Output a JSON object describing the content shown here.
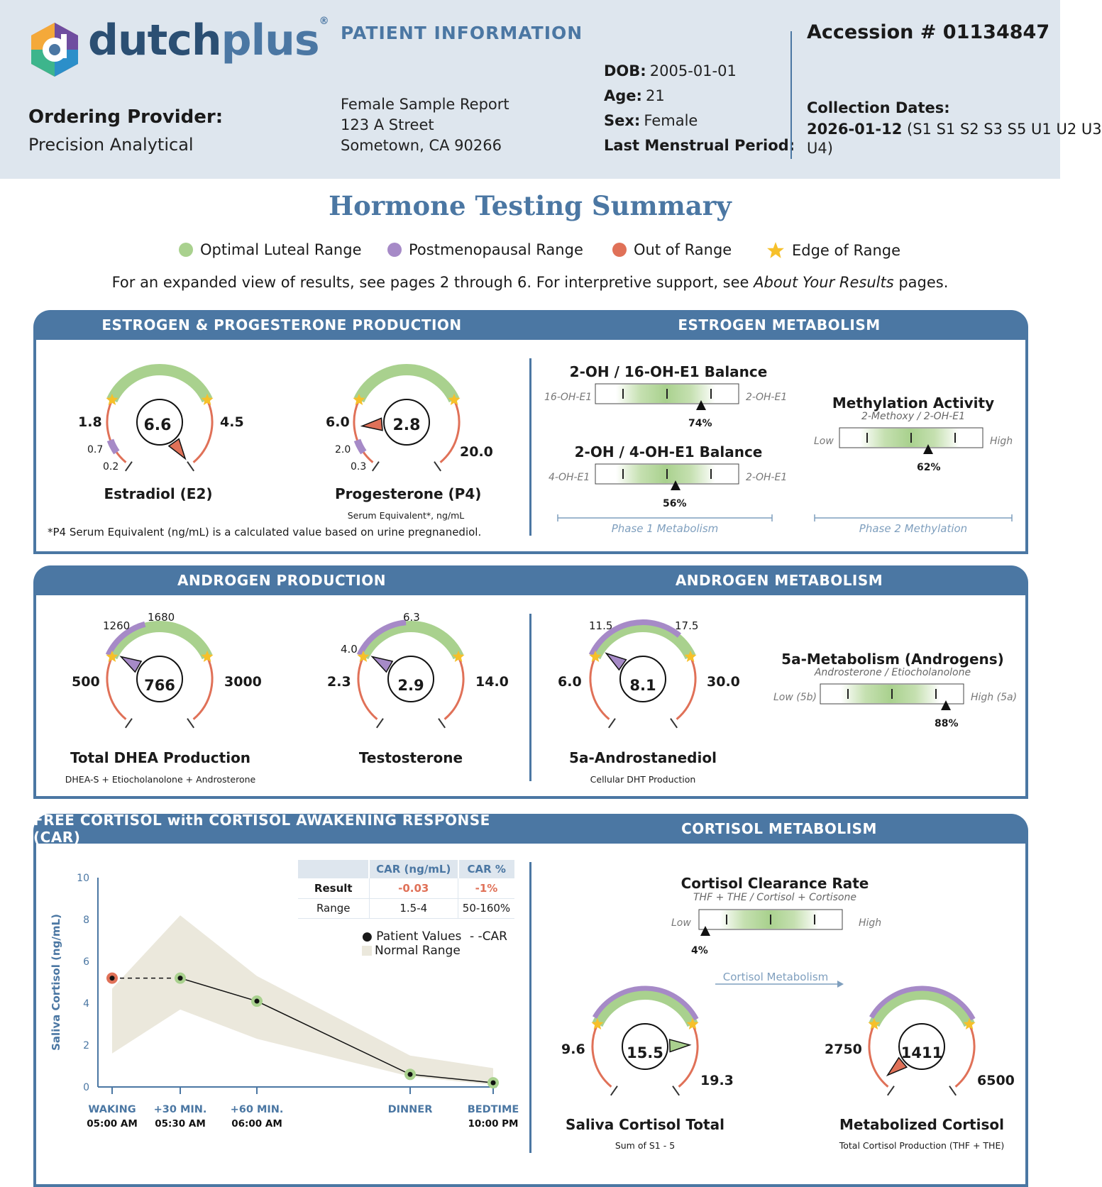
{
  "header": {
    "logo_text_dark": "dutch",
    "logo_text_light": "plus",
    "logo_reg": "®",
    "patient_info_title": "PATIENT INFORMATION",
    "ordering_provider_label": "Ordering Provider:",
    "ordering_provider_value": "Precision Analytical",
    "patient_name": "Female Sample Report",
    "address_line1": "123 A Street",
    "address_line2": "Sometown, CA 90266",
    "dob_label": "DOB:",
    "dob_value": "2005-01-01",
    "age_label": "Age:",
    "age_value": "21",
    "sex_label": "Sex:",
    "sex_value": "Female",
    "lmp_label": "Last Menstrual Period:",
    "accession": "Accession # 01134847",
    "collection_label": "Collection Dates:",
    "collection_date": "2026-01-12",
    "collection_samples_1": "(S1 S1 S2 S3 S5 U1 U2 U3",
    "collection_samples_2": "U4)"
  },
  "title": "Hormone Testing Summary",
  "legend": {
    "optimal": "Optimal Luteal Range",
    "postmeno": "Postmenopausal Range",
    "out": "Out of Range",
    "edge": "Edge of Range"
  },
  "intro": {
    "part1": "For an expanded view of results, see pages 2 through 6. For interpretive support, see ",
    "italic": "About Your Results",
    "part2": " pages."
  },
  "colors": {
    "brand_blue": "#4b77a3",
    "header_bg": "#dee6ee",
    "optimal_green": "#a9d18e",
    "postmeno_purple": "#a68ac7",
    "out_of_range_red": "#e07158",
    "edge_star": "#f6c02a",
    "normal_range_fill": "#ebe8dc"
  },
  "panels": {
    "estrogen_production": {
      "title": "ESTROGEN & PROGESTERONE PRODUCTION",
      "footnote": "*P4 Serum Equivalent (ng/mL) is a calculated value based on urine pregnanediol.",
      "gauges": {
        "e2": {
          "name": "Estradiol (E2)",
          "value": "6.6",
          "low": "1.8",
          "high": "4.5",
          "post_high": "0.7",
          "post_low": "0.2",
          "status": "out_of_range_high"
        },
        "p4": {
          "name": "Progesterone (P4)",
          "sub": "Serum Equivalent*, ng/mL",
          "value": "2.8",
          "low": "6.0",
          "high": "20.0",
          "post_high": "2.0",
          "post_low": "0.3",
          "status": "out_of_range_low"
        }
      }
    },
    "estrogen_metabolism": {
      "title": "ESTROGEN METABOLISM",
      "bar1": {
        "title": "2-OH / 16-OH-E1 Balance",
        "left": "16-OH-E1",
        "right": "2-OH-E1",
        "pct_label": "74%",
        "pct": 74
      },
      "bar2": {
        "title": "2-OH / 4-OH-E1 Balance",
        "left": "4-OH-E1",
        "right": "2-OH-E1",
        "pct_label": "56%",
        "pct": 56
      },
      "bar3": {
        "title": "Methylation Activity",
        "sub": "2-Methoxy / 2-OH-E1",
        "left": "Low",
        "right": "High",
        "pct_label": "62%",
        "pct": 62
      },
      "phase1": "Phase 1 Metabolism",
      "phase2": "Phase 2 Methylation"
    },
    "androgen_production": {
      "title": "ANDROGEN PRODUCTION",
      "gauges": {
        "dhea": {
          "name": "Total DHEA Production",
          "sub": "DHEA-S + Etiocholanolone + Androsterone",
          "value": "766",
          "low": "500",
          "high": "3000",
          "post_low": "1260",
          "post_high": "1680",
          "status": "postmenopausal"
        },
        "testo": {
          "name": "Testosterone",
          "value": "2.9",
          "low": "2.3",
          "high": "14.0",
          "post_low": "4.0",
          "post_high": "6.3",
          "status": "postmenopausal"
        }
      }
    },
    "androgen_metabolism": {
      "title": "ANDROGEN METABOLISM",
      "gauge": {
        "name": "5a-Androstanediol",
        "sub": "Cellular DHT Production",
        "value": "8.1",
        "low": "6.0",
        "high": "30.0",
        "post_low": "11.5",
        "post_high": "17.5",
        "status": "postmenopausal"
      },
      "bar": {
        "title": "5a-Metabolism (Androgens)",
        "sub": "Androsterone / Etiocholanolone",
        "left": "Low (5b)",
        "right": "High (5a)",
        "pct_label": "88%",
        "pct": 88
      }
    },
    "cortisol_car": {
      "title": "FREE CORTISOL with CORTISOL AWAKENING RESPONSE (CAR)",
      "table": {
        "col1": "CAR (ng/mL)",
        "col2": "CAR %",
        "row1_label": "Result",
        "row1_v1": "-0.03",
        "row1_v2": "-1%",
        "row2_label": "Range",
        "row2_v1": "1.5-4",
        "row2_v2": "50-160%"
      },
      "legend_patient": "Patient Values",
      "legend_car": "CAR",
      "legend_normal": "Normal Range"
    },
    "cortisol_metabolism": {
      "title": "CORTISOL METABOLISM",
      "bar": {
        "title": "Cortisol Clearance Rate",
        "sub": "THF + THE / Cortisol + Cortisone",
        "left": "Low",
        "right": "High",
        "pct_label": "4%",
        "pct": 4
      },
      "arrow_label": "Cortisol Metabolism",
      "gauges": {
        "saliva": {
          "name": "Saliva Cortisol Total",
          "sub": "Sum of S1 - 5",
          "value": "15.5",
          "low": "9.6",
          "high": "19.3",
          "status": "optimal"
        },
        "metab": {
          "name": "Metabolized Cortisol",
          "sub": "Total Cortisol Production (THF + THE)",
          "value": "1411",
          "low": "2750",
          "high": "6500",
          "status": "out_of_range_low"
        }
      }
    }
  },
  "chart_data": {
    "type": "line",
    "ylabel": "Saliva Cortisol  (ng/mL)",
    "ylim": [
      0,
      10
    ],
    "yticks": [
      "0",
      "2",
      "4",
      "6",
      "8",
      "10"
    ],
    "x_labels": [
      "WAKING",
      "+30 MIN.",
      "+60 MIN.",
      "DINNER",
      "BEDTIME"
    ],
    "x_times": [
      "05:00 AM",
      "05:30 AM",
      "06:00 AM",
      "",
      "10:00 PM"
    ],
    "x_positions_hours": [
      0,
      0.5,
      1,
      5.4,
      6.0
    ],
    "series": [
      {
        "name": "Patient Values",
        "values": [
          5.2,
          5.2,
          4.1,
          0.6,
          0.2
        ]
      }
    ],
    "normal_range": {
      "low": [
        1.6,
        3.7,
        2.3,
        0.5,
        0.1
      ],
      "high": [
        4.7,
        8.2,
        5.3,
        1.5,
        0.9
      ]
    }
  }
}
